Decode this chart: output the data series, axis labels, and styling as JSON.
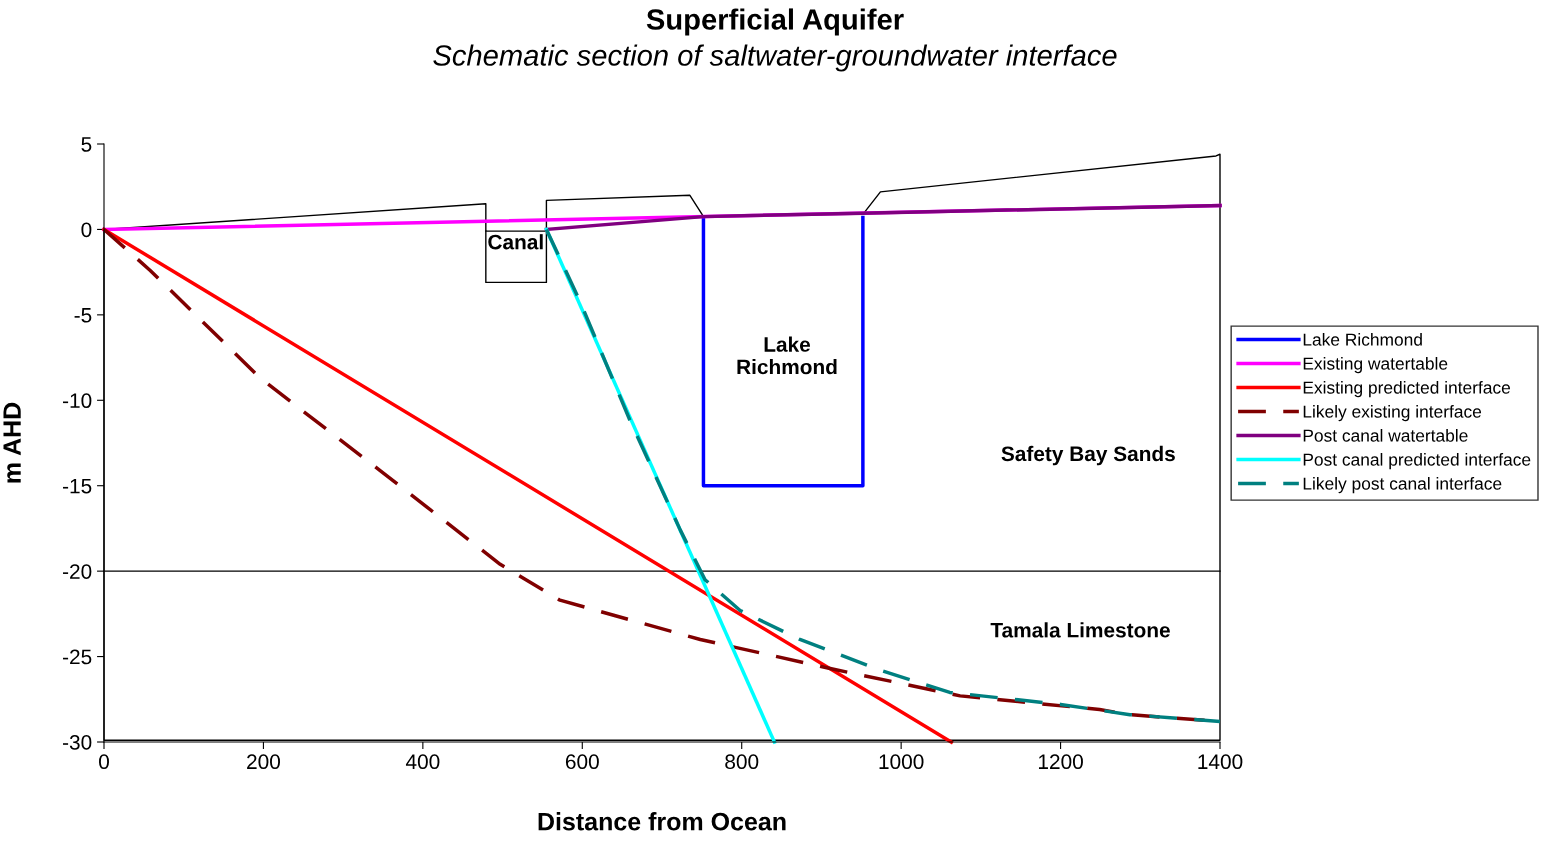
{
  "chart_data": {
    "type": "line",
    "title": "Superficial Aquifer",
    "subtitle": "Schematic section of saltwater-groundwater interface",
    "xlabel": "Distance from Ocean",
    "ylabel": "m AHD",
    "xlim": [
      0,
      1400
    ],
    "xticks": [
      0,
      200,
      400,
      600,
      800,
      1000,
      1200,
      1400
    ],
    "ylim": [
      -30,
      5
    ],
    "yticks": [
      -30,
      -25,
      -20,
      -15,
      -10,
      -5,
      0,
      5
    ],
    "grid": false,
    "legend": "right",
    "marker": "none",
    "series": [
      {
        "color": "#000000",
        "line_style": "solid",
        "x": [
          0,
          479,
          479,
          555,
          555,
          735,
          752
        ],
        "values": [
          0,
          1.5,
          -0.1,
          -0.1,
          1.7,
          2.0,
          0.76
        ]
      },
      {
        "color": "#000000",
        "line_style": "solid",
        "x": [
          479,
          479,
          555,
          555
        ],
        "values": [
          -0.1,
          -3.1,
          -3.1,
          -0.1
        ]
      },
      {
        "color": "#000000",
        "line_style": "solid",
        "x": [
          952,
          974,
          1395,
          1400,
          1400,
          0,
          0
        ],
        "values": [
          0.88,
          2.2,
          4.3,
          4.4,
          -29.9,
          -29.9,
          0
        ]
      },
      {
        "color": "#000000",
        "line_style": "solid",
        "x": [
          0,
          1400
        ],
        "values": [
          -20,
          -20
        ]
      },
      {
        "name": "Lake Richmond",
        "color": "#0000ff",
        "line_style": "solid",
        "x": [
          752,
          752,
          952,
          952
        ],
        "values": [
          0.7,
          -15,
          -15,
          0.7
        ]
      },
      {
        "name": "Existing watertable",
        "color": "#ff00ff",
        "line_style": "solid",
        "x": [
          0,
          1400
        ],
        "values": [
          0,
          1.4
        ]
      },
      {
        "name": "Existing predicted interface",
        "color": "#ff0000",
        "line_style": "solid",
        "x": [
          0,
          1063
        ],
        "values": [
          0,
          -30
        ]
      },
      {
        "name": "Likely existing interface",
        "color": "#800000",
        "line_style": "dashed",
        "x": [
          0,
          58,
          196,
          346,
          497,
          572,
          748,
          911,
          1074,
          1249,
          1287,
          1400
        ],
        "values": [
          0,
          -2.4,
          -8.7,
          -14.1,
          -19.6,
          -21.7,
          -24.0,
          -25.7,
          -27.3,
          -28.1,
          -28.4,
          -28.8
        ]
      },
      {
        "name": "Post canal watertable",
        "color": "#800080",
        "line_style": "solid",
        "x": [
          555,
          752,
          952,
          1400
        ],
        "values": [
          0,
          0.75,
          0.95,
          1.4
        ]
      },
      {
        "name": "Post canal predicted interface",
        "color": "#00ffff",
        "line_style": "solid",
        "x": [
          555,
          841
        ],
        "values": [
          0,
          -30
        ]
      },
      {
        "name": "Likely post canal interface",
        "color": "#008080",
        "line_style": "dashed",
        "x": [
          555,
          597,
          660,
          723,
          754,
          798,
          873,
          974,
          1061,
          1200,
          1287,
          1400
        ],
        "values": [
          0,
          -4.2,
          -11.2,
          -17.6,
          -20.5,
          -22.3,
          -24.0,
          -25.8,
          -27.1,
          -27.8,
          -28.4,
          -28.8
        ]
      }
    ],
    "annotations": [
      "Canal",
      "Lake\nRichmond",
      "Safety Bay Sands",
      "Tamala Limestone"
    ]
  }
}
